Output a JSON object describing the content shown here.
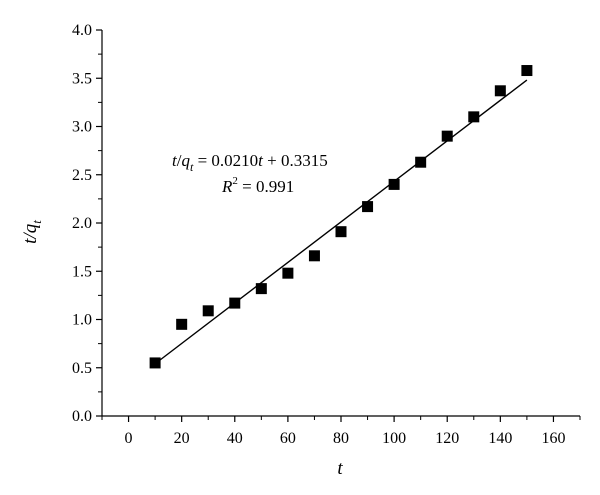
{
  "chart_data": {
    "type": "scatter",
    "title": "",
    "xlabel": "t",
    "ylabel_main": "t/q",
    "ylabel_sub": "t",
    "xlim": [
      -10,
      170
    ],
    "ylim": [
      0,
      4.0
    ],
    "xticks": [
      0,
      20,
      40,
      60,
      80,
      100,
      120,
      140,
      160
    ],
    "yticks": [
      0.0,
      0.5,
      1.0,
      1.5,
      2.0,
      2.5,
      3.0,
      3.5,
      4.0
    ],
    "xtick_labels": [
      "0",
      "20",
      "40",
      "60",
      "80",
      "100",
      "120",
      "140",
      "160"
    ],
    "ytick_labels": [
      "0.0",
      "0.5",
      "1.0",
      "1.5",
      "2.0",
      "2.5",
      "3.0",
      "3.5",
      "4.0"
    ],
    "grid": false,
    "legend": "none",
    "series": [
      {
        "marker": "square",
        "color": "#000000",
        "x": [
          10,
          20,
          30,
          40,
          50,
          60,
          70,
          80,
          90,
          100,
          110,
          120,
          130,
          140,
          150
        ],
        "y": [
          0.55,
          0.95,
          1.09,
          1.17,
          1.32,
          1.48,
          1.66,
          1.91,
          2.17,
          2.4,
          2.63,
          2.9,
          3.1,
          3.37,
          3.58
        ]
      }
    ],
    "fit_line": {
      "slope": 0.021,
      "intercept": 0.3315,
      "x_range": [
        10,
        150
      ],
      "color": "#000000"
    },
    "annotation": {
      "eq_lhs_t": "t",
      "eq_lhs_slash": "/",
      "eq_lhs_q": "q",
      "eq_lhs_sub": "t",
      "eq_rhs_1": " = 0.0210",
      "eq_rhs_t": "t",
      "eq_rhs_2": " + 0.3315",
      "r2_R": "R",
      "r2_sup": "2",
      "r2_value": " = 0.991"
    }
  }
}
